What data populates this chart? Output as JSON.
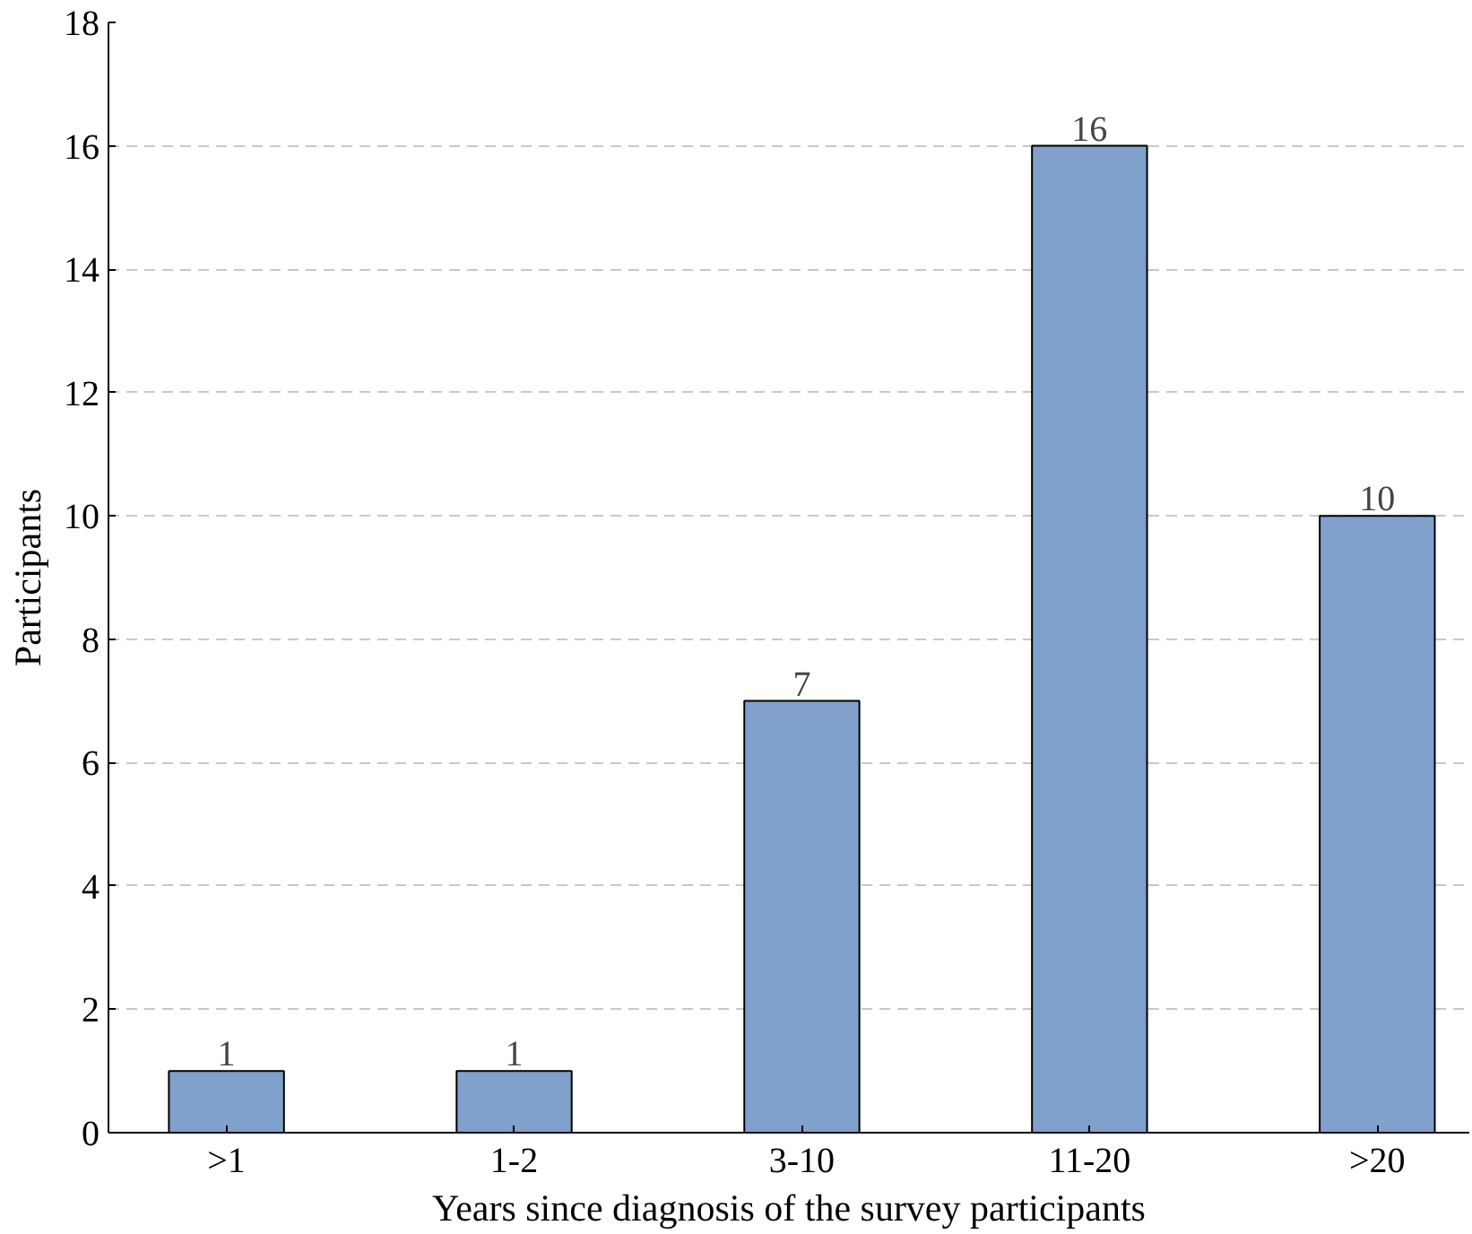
{
  "chart_data": {
    "type": "bar",
    "xlabel": "Years since diagnosis of the survey participants",
    "ylabel": "Participants",
    "categories": [
      ">1",
      "1-2",
      "3-10",
      "11-20",
      ">20"
    ],
    "values": [
      1,
      1,
      7,
      16,
      10
    ],
    "color": "#7fa1cc",
    "ylim": [
      0,
      18
    ],
    "yticks": [
      0,
      2,
      4,
      6,
      8,
      10,
      12,
      14,
      16,
      18
    ],
    "grid": "y",
    "data_labels": true
  }
}
